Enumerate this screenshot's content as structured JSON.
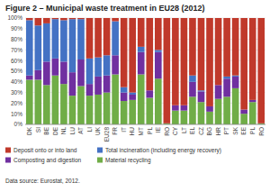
{
  "chart_data": {
    "type": "bar",
    "stacked": true,
    "title": "Figure 2 – Municipal waste treatment in EU28 (2012)",
    "source": "Data source: Eurostat, 2012.",
    "categories": [
      "DK",
      "SI",
      "BE",
      "DE",
      "NL",
      "LU",
      "AT",
      "LI",
      "UK",
      "EU28",
      "FR",
      "IT",
      "HU",
      "MT",
      "PL",
      "IE",
      "RO",
      "CY",
      "LT",
      "EL",
      "CZ",
      "BG",
      "HR",
      "PT",
      "SK",
      "EE",
      "PL",
      "RO"
    ],
    "series": [
      {
        "name": "Material recycling",
        "color": "#70ad47",
        "values": [
          42,
          42,
          37,
          46,
          38,
          27,
          36,
          27,
          28,
          30,
          47,
          22,
          23,
          47,
          25,
          43,
          1,
          13,
          13,
          26,
          21,
          12,
          24,
          26,
          34,
          10,
          21,
          1
        ]
      },
      {
        "name": "Composting and digestion",
        "color": "#7030a0",
        "values": [
          4,
          9,
          22,
          16,
          21,
          22,
          25,
          11,
          17,
          16,
          18,
          8,
          5,
          21,
          7,
          25,
          0,
          5,
          5,
          14,
          10,
          5,
          13,
          17,
          11,
          4,
          2,
          0
        ]
      },
      {
        "name": "Total incineration (including energy recovery)",
        "color": "#4472c4",
        "values": [
          52,
          42,
          36,
          37,
          39,
          50,
          38,
          24,
          18,
          19,
          32,
          5,
          2,
          5,
          0,
          2,
          0,
          0,
          0,
          6,
          1,
          0,
          0,
          2,
          1,
          0,
          0,
          0
        ]
      },
      {
        "name": "Deposit onto or into land",
        "color": "#c0392b",
        "values": [
          2,
          7,
          5,
          1,
          2,
          1,
          1,
          38,
          37,
          35,
          3,
          65,
          70,
          27,
          68,
          30,
          99,
          82,
          82,
          54,
          68,
          83,
          63,
          55,
          54,
          86,
          77,
          99
        ]
      }
    ],
    "ylim": [
      0,
      100
    ],
    "yticks": [
      {
        "value": 0,
        "label": "0%"
      },
      {
        "value": 10,
        "label": "10%"
      },
      {
        "value": 20,
        "label": "20%"
      },
      {
        "value": 30,
        "label": "30%"
      },
      {
        "value": 40,
        "label": "40%"
      },
      {
        "value": 50,
        "label": "50%"
      },
      {
        "value": 60,
        "label": "60%"
      },
      {
        "value": 70,
        "label": "70%"
      },
      {
        "value": 80,
        "label": "80%"
      },
      {
        "value": 90,
        "label": "90%"
      },
      {
        "value": 100,
        "label": "100%"
      }
    ],
    "grid": true
  }
}
